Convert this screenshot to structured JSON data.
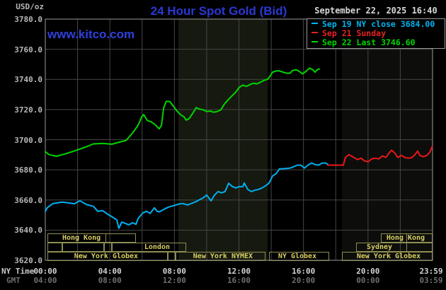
{
  "header": {
    "unit_label": "USD/oz",
    "title": "24 Hour Spot Gold (Bid)",
    "watermark": "www.kitco.com",
    "datetime": "September 22, 2025 16:40"
  },
  "legend": {
    "entries": [
      {
        "label": "Sep 19 NY close 3684.00",
        "color": "#00b4f0"
      },
      {
        "label": "Sep 21 Sunday",
        "color": "#e62222"
      },
      {
        "label": "Sep 22 Last 3746.60",
        "color": "#00d800"
      }
    ]
  },
  "y_axis": {
    "tick_labels": [
      "3780.0",
      "3760.0",
      "3740.0",
      "3720.0",
      "3700.0",
      "3680.0",
      "3660.0",
      "3640.0",
      "3620.0"
    ]
  },
  "x_axis": {
    "ny_row_label": "NY Time",
    "gmt_row_label": "GMT",
    "ny_ticks": [
      "00:00",
      "04:00",
      "08:00",
      "12:00",
      "16:00",
      "20:00",
      "23:59"
    ],
    "gmt_ticks": [
      "04:00",
      "08:00",
      "12:00",
      "16:00",
      "20:00",
      "00:00",
      "03:59"
    ]
  },
  "sessions": [
    {
      "row": 0,
      "start_h": 0.13,
      "end_h": 5.62,
      "label": "Hong Kong",
      "label_center_h": 2.24,
      "dividers_h": [
        3.69
      ]
    },
    {
      "row": 0,
      "start_h": 20.8,
      "end_h": 24.0,
      "label": "Hong Kong",
      "label_center_h": 22.33,
      "dividers_h": [
        22.33
      ]
    },
    {
      "row": 1,
      "start_h": 0.13,
      "end_h": 1.05,
      "label": "",
      "label_center_h": null,
      "dividers_h": []
    },
    {
      "row": 1,
      "start_h": 1.05,
      "end_h": 3.64,
      "label": "",
      "label_center_h": null,
      "dividers_h": []
    },
    {
      "row": 1,
      "start_h": 3.64,
      "end_h": 4.12,
      "label": "",
      "label_center_h": null,
      "dividers_h": []
    },
    {
      "row": 1,
      "start_h": 4.12,
      "end_h": 8.73,
      "label": "London",
      "label_center_h": 6.93,
      "dividers_h": []
    },
    {
      "row": 1,
      "start_h": 19.26,
      "end_h": 24.0,
      "label": "Sydney",
      "label_center_h": 20.71,
      "dividers_h": [
        22.33
      ]
    },
    {
      "row": 2,
      "start_h": 0.13,
      "end_h": 7.59,
      "label": "New York Globex",
      "label_center_h": 3.77,
      "dividers_h": []
    },
    {
      "row": 2,
      "start_h": 7.59,
      "end_h": 8.07,
      "label": "",
      "label_center_h": null,
      "dividers_h": []
    },
    {
      "row": 2,
      "start_h": 8.07,
      "end_h": 13.65,
      "label": "New York NYMEX",
      "label_center_h": 11.01,
      "dividers_h": []
    },
    {
      "row": 2,
      "start_h": 13.87,
      "end_h": 17.6,
      "label": "NY Globex",
      "label_center_h": 15.62,
      "dividers_h": []
    },
    {
      "row": 2,
      "start_h": 18.39,
      "end_h": 24.0,
      "label": "New York Globex",
      "label_center_h": 21.28,
      "dividers_h": []
    }
  ],
  "chart_data": {
    "type": "line",
    "title": "24 Hour Spot Gold (Bid)",
    "xlabel": "NY Time (hours)",
    "ylabel": "USD/oz",
    "x_range_hours": [
      0,
      24
    ],
    "ylim": [
      3620,
      3780
    ],
    "y_tick_step": 20,
    "x_gridline_step_hours": 2,
    "grid": true,
    "legend_position": "top-right",
    "highlight_bands_hours": [
      {
        "start_h": 8.25,
        "end_h": 13.78,
        "color": "#16190f"
      },
      {
        "start_h": 18.39,
        "end_h": 24.0,
        "color": "#0d0d0b"
      }
    ],
    "series": [
      {
        "name": "Sep 19 NY close",
        "close_value": 3684.0,
        "color": "#00b0f0",
        "points": [
          [
            0,
            3652.5
          ],
          [
            0.13,
            3655.0
          ],
          [
            0.48,
            3657.7
          ],
          [
            1.05,
            3658.6
          ],
          [
            1.5,
            3658.0
          ],
          [
            1.8,
            3657.5
          ],
          [
            2.15,
            3659.5
          ],
          [
            2.54,
            3657.0
          ],
          [
            2.98,
            3655.8
          ],
          [
            3.25,
            3652.5
          ],
          [
            3.55,
            3653.0
          ],
          [
            3.86,
            3650.6
          ],
          [
            4.12,
            3649.0
          ],
          [
            4.43,
            3646.8
          ],
          [
            4.56,
            3641.2
          ],
          [
            4.74,
            3645.4
          ],
          [
            4.96,
            3644.5
          ],
          [
            5.18,
            3643.5
          ],
          [
            5.4,
            3644.9
          ],
          [
            5.62,
            3643.9
          ],
          [
            5.75,
            3647.7
          ],
          [
            6.05,
            3651.5
          ],
          [
            6.27,
            3652.5
          ],
          [
            6.49,
            3651.1
          ],
          [
            6.63,
            3653.0
          ],
          [
            6.76,
            3654.8
          ],
          [
            6.93,
            3652.5
          ],
          [
            7.06,
            3652.1
          ],
          [
            7.37,
            3653.9
          ],
          [
            7.63,
            3655.3
          ],
          [
            7.94,
            3656.2
          ],
          [
            8.25,
            3657.2
          ],
          [
            8.51,
            3657.7
          ],
          [
            8.82,
            3656.7
          ],
          [
            9.13,
            3658.0
          ],
          [
            9.35,
            3659.0
          ],
          [
            9.57,
            3660.2
          ],
          [
            9.79,
            3661.5
          ],
          [
            10.0,
            3663.3
          ],
          [
            10.27,
            3659.4
          ],
          [
            10.49,
            3663.3
          ],
          [
            10.71,
            3665.6
          ],
          [
            10.92,
            3664.7
          ],
          [
            11.14,
            3665.6
          ],
          [
            11.36,
            3671.1
          ],
          [
            11.58,
            3669.0
          ],
          [
            11.8,
            3668.0
          ],
          [
            12.02,
            3668.9
          ],
          [
            12.24,
            3668.8
          ],
          [
            12.33,
            3671.3
          ],
          [
            12.55,
            3667.0
          ],
          [
            12.77,
            3665.6
          ],
          [
            12.99,
            3666.5
          ],
          [
            13.21,
            3667.0
          ],
          [
            13.43,
            3668.0
          ],
          [
            13.65,
            3669.4
          ],
          [
            13.87,
            3671.3
          ],
          [
            14.09,
            3676.0
          ],
          [
            14.3,
            3677.4
          ],
          [
            14.52,
            3680.7
          ],
          [
            14.74,
            3680.7
          ],
          [
            15.18,
            3681.2
          ],
          [
            15.4,
            3682.1
          ],
          [
            15.62,
            3683.1
          ],
          [
            15.84,
            3683.1
          ],
          [
            16.06,
            3681.2
          ],
          [
            16.28,
            3683.1
          ],
          [
            16.5,
            3684.5
          ],
          [
            16.72,
            3683.5
          ],
          [
            16.94,
            3683.1
          ],
          [
            17.16,
            3684.5
          ],
          [
            17.38,
            3684.5
          ],
          [
            17.51,
            3683.5
          ]
        ]
      },
      {
        "name": "Sep 21 Sunday",
        "color": "#e81818",
        "points": [
          [
            17.51,
            3683.1
          ],
          [
            18.47,
            3683.1
          ],
          [
            18.6,
            3688.2
          ],
          [
            18.82,
            3690.1
          ],
          [
            19.13,
            3688.2
          ],
          [
            19.35,
            3686.8
          ],
          [
            19.57,
            3687.7
          ],
          [
            19.79,
            3685.9
          ],
          [
            20.01,
            3685.4
          ],
          [
            20.23,
            3687.3
          ],
          [
            20.45,
            3687.7
          ],
          [
            20.67,
            3687.3
          ],
          [
            20.89,
            3689.2
          ],
          [
            21.11,
            3688.2
          ],
          [
            21.33,
            3691.5
          ],
          [
            21.46,
            3693.0
          ],
          [
            21.63,
            3691.5
          ],
          [
            21.85,
            3688.2
          ],
          [
            22.07,
            3689.6
          ],
          [
            22.29,
            3688.2
          ],
          [
            22.51,
            3687.7
          ],
          [
            22.73,
            3688.2
          ],
          [
            22.95,
            3690.6
          ],
          [
            23.08,
            3692.5
          ],
          [
            23.21,
            3689.6
          ],
          [
            23.43,
            3688.7
          ],
          [
            23.65,
            3689.6
          ],
          [
            23.82,
            3691.5
          ],
          [
            23.98,
            3695.4
          ]
        ]
      },
      {
        "name": "Sep 22 Last",
        "last_value": 3746.6,
        "color": "#00d500",
        "points": [
          [
            0,
            3692.0
          ],
          [
            0.26,
            3690.0
          ],
          [
            0.7,
            3689.0
          ],
          [
            1.36,
            3691.0
          ],
          [
            1.93,
            3693.0
          ],
          [
            2.54,
            3695.3
          ],
          [
            2.98,
            3697.2
          ],
          [
            3.55,
            3697.5
          ],
          [
            4.12,
            3697.0
          ],
          [
            4.56,
            3698.3
          ],
          [
            5.0,
            3699.5
          ],
          [
            5.44,
            3704.9
          ],
          [
            5.75,
            3709.6
          ],
          [
            5.97,
            3715.1
          ],
          [
            6.1,
            3716.7
          ],
          [
            6.32,
            3712.7
          ],
          [
            6.54,
            3711.9
          ],
          [
            6.76,
            3710.4
          ],
          [
            7.06,
            3707.2
          ],
          [
            7.2,
            3709.6
          ],
          [
            7.33,
            3721.0
          ],
          [
            7.5,
            3725.5
          ],
          [
            7.72,
            3725.3
          ],
          [
            7.94,
            3722.1
          ],
          [
            8.16,
            3719.0
          ],
          [
            8.38,
            3716.6
          ],
          [
            8.6,
            3715.1
          ],
          [
            8.73,
            3713.0
          ],
          [
            8.91,
            3714.0
          ],
          [
            9.13,
            3717.4
          ],
          [
            9.35,
            3721.3
          ],
          [
            9.57,
            3720.2
          ],
          [
            9.79,
            3719.8
          ],
          [
            10.0,
            3718.7
          ],
          [
            10.22,
            3719.0
          ],
          [
            10.44,
            3718.2
          ],
          [
            10.66,
            3718.7
          ],
          [
            10.88,
            3719.8
          ],
          [
            11.1,
            3723.7
          ],
          [
            11.36,
            3726.8
          ],
          [
            11.58,
            3729.2
          ],
          [
            11.8,
            3731.5
          ],
          [
            12.02,
            3734.7
          ],
          [
            12.24,
            3736.2
          ],
          [
            12.46,
            3735.4
          ],
          [
            12.68,
            3736.5
          ],
          [
            12.9,
            3737.5
          ],
          [
            13.12,
            3737.0
          ],
          [
            13.34,
            3738.1
          ],
          [
            13.56,
            3739.4
          ],
          [
            13.78,
            3740.1
          ],
          [
            13.95,
            3742.5
          ],
          [
            14.09,
            3744.8
          ],
          [
            14.3,
            3745.6
          ],
          [
            14.52,
            3745.6
          ],
          [
            14.74,
            3744.8
          ],
          [
            14.96,
            3744.1
          ],
          [
            15.18,
            3744.1
          ],
          [
            15.31,
            3745.9
          ],
          [
            15.53,
            3746.4
          ],
          [
            15.75,
            3745.3
          ],
          [
            15.93,
            3743.7
          ],
          [
            16.15,
            3745.3
          ],
          [
            16.37,
            3747.5
          ],
          [
            16.59,
            3746.4
          ],
          [
            16.72,
            3744.8
          ],
          [
            16.85,
            3746.4
          ],
          [
            16.98,
            3746.9
          ]
        ]
      }
    ]
  },
  "colors": {
    "background": "#000000",
    "grid": "#464646",
    "plot_border": "#9a9a9a",
    "title_blue": "#2b38d4",
    "watermark_blue": "#2e40dd",
    "axis_text": "#b8b8b8",
    "gmt_text": "#6e6e6e",
    "session_border": "#8e8e52",
    "session_text": "#d9cf63"
  }
}
